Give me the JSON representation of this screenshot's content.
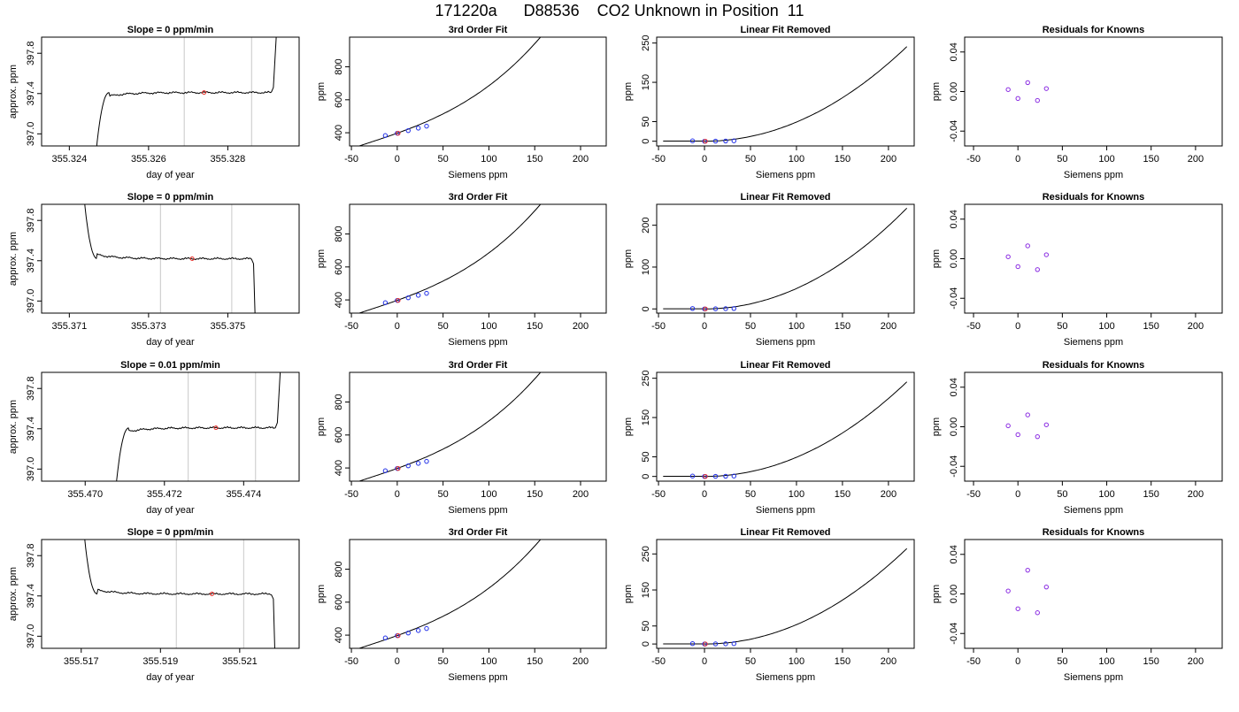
{
  "figure": {
    "title": "171220a      D88536    CO2 Unknown in Position  11"
  },
  "axis_labels": {
    "day_of_year": "day of year",
    "approx_ppm": "approx. ppm",
    "siemens_ppm": "Siemens ppm",
    "ppm": "ppm"
  },
  "panel_titles": {
    "fit3": "3rd Order Fit",
    "linear_removed": "Linear Fit Removed",
    "residuals": "Residuals for Knowns"
  },
  "colors": {
    "trace": "#000000",
    "marker_red": "#e8302a",
    "marker_blue": "#1f2ee8",
    "marker_purple": "#8a2be2",
    "window_line": "#c8c8c8"
  },
  "chart_data": [
    {
      "type": "line",
      "row": 1,
      "column": "time series",
      "title": "Slope =  0  ppm/min",
      "xlabel": "day of year",
      "ylabel": "approx. ppm",
      "xlim": [
        355.3233,
        355.3298
      ],
      "ylim": [
        396.88,
        397.96
      ],
      "xticks": [
        355.324,
        355.326,
        355.328
      ],
      "xtick_labels": [
        "355.324",
        "355.326",
        "355.328"
      ],
      "yticks": [
        397.0,
        397.4,
        397.8
      ],
      "ytick_labels": [
        "397.0",
        "397.4",
        "397.8"
      ],
      "window_lines": [
        355.3269,
        355.3286
      ],
      "marker": {
        "x": 355.3274,
        "y": 397.41
      },
      "trace": {
        "level": 397.41,
        "start_x": 355.3246,
        "rise_x": 355.325,
        "end_x": 355.3291,
        "edge": "rise-left-jump-right"
      }
    },
    {
      "type": "line",
      "row": 2,
      "column": "time series",
      "title": "Slope =  0  ppm/min",
      "xlabel": "day of year",
      "ylabel": "approx. ppm",
      "xlim": [
        355.3703,
        355.3768
      ],
      "ylim": [
        396.88,
        397.96
      ],
      "xticks": [
        355.371,
        355.373,
        355.375
      ],
      "xtick_labels": [
        "355.371",
        "355.373",
        "355.375"
      ],
      "yticks": [
        397.0,
        397.4,
        397.8
      ],
      "ytick_labels": [
        "397.0",
        "397.4",
        "397.8"
      ],
      "window_lines": [
        355.3733,
        355.3751
      ],
      "marker": {
        "x": 355.3741,
        "y": 397.42
      },
      "trace": {
        "level": 397.42,
        "start_x": 355.3713,
        "rise_x": 355.3717,
        "end_x": 355.3756,
        "edge": "decay-left-drop-right"
      }
    },
    {
      "type": "line",
      "row": 3,
      "column": "time series",
      "title": "Slope =  0.01  ppm/min",
      "xlabel": "day of year",
      "ylabel": "approx. ppm",
      "xlim": [
        355.4689,
        355.4754
      ],
      "ylim": [
        396.88,
        397.96
      ],
      "xticks": [
        355.47,
        355.472,
        355.474
      ],
      "xtick_labels": [
        "355.470",
        "355.472",
        "355.474"
      ],
      "yticks": [
        397.0,
        397.4,
        397.8
      ],
      "ytick_labels": [
        "397.0",
        "397.4",
        "397.8"
      ],
      "window_lines": [
        355.4726,
        355.4743
      ],
      "marker": {
        "x": 355.4733,
        "y": 397.41
      },
      "trace": {
        "level": 397.41,
        "start_x": 355.4707,
        "rise_x": 355.4711,
        "end_x": 355.4748,
        "edge": "rise-left-jump-right"
      }
    },
    {
      "type": "line",
      "row": 4,
      "column": "time series",
      "title": "Slope =  0  ppm/min",
      "xlabel": "day of year",
      "ylabel": "approx. ppm",
      "xlim": [
        355.516,
        355.5225
      ],
      "ylim": [
        396.88,
        397.96
      ],
      "xticks": [
        355.517,
        355.519,
        355.521
      ],
      "xtick_labels": [
        "355.517",
        "355.519",
        "355.521"
      ],
      "yticks": [
        397.0,
        397.4,
        397.8
      ],
      "ytick_labels": [
        "397.0",
        "397.4",
        "397.8"
      ],
      "window_lines": [
        355.5194,
        355.5211
      ],
      "marker": {
        "x": 355.5203,
        "y": 397.42
      },
      "trace": {
        "level": 397.42,
        "start_x": 355.517,
        "rise_x": 355.5174,
        "end_x": 355.5218,
        "edge": "decay-left-drop-right"
      }
    },
    {
      "type": "line",
      "row": 1,
      "column": "fit",
      "title": "3rd Order Fit",
      "xlabel": "Siemens ppm",
      "ylabel": "ppm",
      "xlim": [
        -52,
        228
      ],
      "ylim": [
        320,
        980
      ],
      "xticks": [
        -50,
        0,
        50,
        100,
        150,
        200
      ],
      "yticks": [
        400,
        600,
        800
      ],
      "curve": {
        "x0": -45,
        "x1": 220,
        "a": 397.4,
        "b": 2.0,
        "c": 0.0048,
        "d": 4e-05
      },
      "points_blue": [
        [
          -13,
          383
        ],
        [
          0,
          397
        ],
        [
          12,
          413
        ],
        [
          23,
          428
        ],
        [
          32,
          440
        ]
      ],
      "points_red": [
        [
          0,
          397
        ]
      ]
    },
    {
      "type": "line",
      "row": 2,
      "column": "fit",
      "title": "3rd Order Fit",
      "xlabel": "Siemens ppm",
      "ylabel": "ppm",
      "xlim": [
        -52,
        228
      ],
      "ylim": [
        320,
        980
      ],
      "xticks": [
        -50,
        0,
        50,
        100,
        150,
        200
      ],
      "yticks": [
        400,
        600,
        800
      ],
      "curve": {
        "x0": -45,
        "x1": 220,
        "a": 397.4,
        "b": 2.0,
        "c": 0.0048,
        "d": 4e-05
      },
      "points_blue": [
        [
          -13,
          383
        ],
        [
          0,
          397
        ],
        [
          12,
          413
        ],
        [
          23,
          428
        ],
        [
          32,
          440
        ]
      ],
      "points_red": [
        [
          0,
          397
        ]
      ]
    },
    {
      "type": "line",
      "row": 3,
      "column": "fit",
      "title": "3rd Order Fit",
      "xlabel": "Siemens ppm",
      "ylabel": "ppm",
      "xlim": [
        -52,
        228
      ],
      "ylim": [
        320,
        980
      ],
      "xticks": [
        -50,
        0,
        50,
        100,
        150,
        200
      ],
      "yticks": [
        400,
        600,
        800
      ],
      "curve": {
        "x0": -45,
        "x1": 220,
        "a": 397.4,
        "b": 2.0,
        "c": 0.0048,
        "d": 4e-05
      },
      "points_blue": [
        [
          -13,
          383
        ],
        [
          0,
          397
        ],
        [
          12,
          413
        ],
        [
          23,
          428
        ],
        [
          32,
          440
        ]
      ],
      "points_red": [
        [
          0,
          397
        ]
      ]
    },
    {
      "type": "line",
      "row": 4,
      "column": "fit",
      "title": "3rd Order Fit",
      "xlabel": "Siemens ppm",
      "ylabel": "ppm",
      "xlim": [
        -52,
        228
      ],
      "ylim": [
        320,
        980
      ],
      "xticks": [
        -50,
        0,
        50,
        100,
        150,
        200
      ],
      "yticks": [
        400,
        600,
        800
      ],
      "curve": {
        "x0": -45,
        "x1": 220,
        "a": 397.4,
        "b": 2.0,
        "c": 0.0048,
        "d": 4e-05
      },
      "points_blue": [
        [
          -13,
          383
        ],
        [
          0,
          397
        ],
        [
          12,
          413
        ],
        [
          23,
          428
        ],
        [
          32,
          440
        ]
      ],
      "points_red": [
        [
          0,
          397
        ]
      ]
    },
    {
      "type": "line",
      "row": 1,
      "column": "linear removed",
      "title": "Linear Fit Removed",
      "xlabel": "Siemens ppm",
      "ylabel": "ppm",
      "xlim": [
        -52,
        228
      ],
      "ylim": [
        -12,
        265
      ],
      "xticks": [
        -50,
        0,
        50,
        100,
        150,
        200
      ],
      "yticks": [
        0,
        50,
        150,
        250
      ],
      "curve": {
        "x0": -45,
        "x1": 220,
        "c": 0.0048,
        "d": 2.5e-06,
        "offset": 1
      },
      "points_blue": [
        [
          -13,
          1
        ],
        [
          0,
          0
        ],
        [
          12,
          0.3
        ],
        [
          23,
          0.6
        ],
        [
          32,
          1
        ]
      ],
      "points_red": [
        [
          0,
          0
        ]
      ]
    },
    {
      "type": "line",
      "row": 2,
      "column": "linear removed",
      "title": "Linear Fit Removed",
      "xlabel": "Siemens ppm",
      "ylabel": "ppm",
      "xlim": [
        -52,
        228
      ],
      "ylim": [
        -10,
        250
      ],
      "xticks": [
        -50,
        0,
        50,
        100,
        150,
        200
      ],
      "yticks": [
        0,
        100,
        200
      ],
      "curve": {
        "x0": -45,
        "x1": 220,
        "c": 0.0048,
        "d": 2.5e-06,
        "offset": 1
      },
      "points_blue": [
        [
          -13,
          1
        ],
        [
          0,
          0
        ],
        [
          12,
          0.3
        ],
        [
          23,
          0.6
        ],
        [
          32,
          1
        ]
      ],
      "points_red": [
        [
          0,
          0
        ]
      ]
    },
    {
      "type": "line",
      "row": 3,
      "column": "linear removed",
      "title": "Linear Fit Removed",
      "xlabel": "Siemens ppm",
      "ylabel": "ppm",
      "xlim": [
        -52,
        228
      ],
      "ylim": [
        -12,
        265
      ],
      "xticks": [
        -50,
        0,
        50,
        100,
        150,
        200
      ],
      "yticks": [
        0,
        50,
        150,
        250
      ],
      "curve": {
        "x0": -45,
        "x1": 220,
        "c": 0.0048,
        "d": 2.5e-06,
        "offset": 1
      },
      "points_blue": [
        [
          -13,
          1
        ],
        [
          0,
          0
        ],
        [
          12,
          0.3
        ],
        [
          23,
          0.6
        ],
        [
          32,
          1
        ]
      ],
      "points_red": [
        [
          0,
          0
        ]
      ]
    },
    {
      "type": "line",
      "row": 4,
      "column": "linear removed",
      "title": "Linear Fit Removed",
      "xlabel": "Siemens ppm",
      "ylabel": "ppm",
      "xlim": [
        -52,
        228
      ],
      "ylim": [
        -12,
        290
      ],
      "xticks": [
        -50,
        0,
        50,
        100,
        150,
        200
      ],
      "yticks": [
        0,
        50,
        150,
        250
      ],
      "curve": {
        "x0": -45,
        "x1": 220,
        "c": 0.0053,
        "d": 2.5e-06,
        "offset": 1
      },
      "points_blue": [
        [
          -13,
          1
        ],
        [
          0,
          0
        ],
        [
          12,
          0.3
        ],
        [
          23,
          0.6
        ],
        [
          32,
          1
        ]
      ],
      "points_red": [
        [
          0,
          0
        ]
      ]
    },
    {
      "type": "scatter",
      "row": 1,
      "column": "residuals",
      "title": "Residuals for Knowns",
      "xlabel": "Siemens ppm",
      "ylabel": "ppm",
      "xlim": [
        -60,
        230
      ],
      "ylim": [
        -0.055,
        0.055
      ],
      "xticks": [
        -50,
        0,
        50,
        100,
        150,
        200
      ],
      "yticks": [
        -0.04,
        0.0,
        0.04
      ],
      "ytick_labels": [
        "-0.04",
        "0.00",
        "0.04"
      ],
      "points": [
        [
          -11,
          0.002
        ],
        [
          0,
          -0.007
        ],
        [
          11,
          0.009
        ],
        [
          22,
          -0.009
        ],
        [
          32,
          0.003
        ]
      ]
    },
    {
      "type": "scatter",
      "row": 2,
      "column": "residuals",
      "title": "Residuals for Knowns",
      "xlabel": "Siemens ppm",
      "ylabel": "ppm",
      "xlim": [
        -60,
        230
      ],
      "ylim": [
        -0.055,
        0.055
      ],
      "xticks": [
        -50,
        0,
        50,
        100,
        150,
        200
      ],
      "yticks": [
        -0.04,
        0.0,
        0.04
      ],
      "ytick_labels": [
        "-0.04",
        "0.00",
        "0.04"
      ],
      "points": [
        [
          -11,
          0.002
        ],
        [
          0,
          -0.008
        ],
        [
          11,
          0.013
        ],
        [
          22,
          -0.011
        ],
        [
          32,
          0.004
        ]
      ]
    },
    {
      "type": "scatter",
      "row": 3,
      "column": "residuals",
      "title": "Residuals for Knowns",
      "xlabel": "Siemens ppm",
      "ylabel": "ppm",
      "xlim": [
        -60,
        230
      ],
      "ylim": [
        -0.055,
        0.055
      ],
      "xticks": [
        -50,
        0,
        50,
        100,
        150,
        200
      ],
      "yticks": [
        -0.04,
        0.0,
        0.04
      ],
      "ytick_labels": [
        "-0.04",
        "0.00",
        "0.04"
      ],
      "points": [
        [
          -11,
          0.001
        ],
        [
          0,
          -0.008
        ],
        [
          11,
          0.012
        ],
        [
          22,
          -0.01
        ],
        [
          32,
          0.002
        ]
      ]
    },
    {
      "type": "scatter",
      "row": 4,
      "column": "residuals",
      "title": "Residuals for Knowns",
      "xlabel": "Siemens ppm",
      "ylabel": "ppm",
      "xlim": [
        -60,
        230
      ],
      "ylim": [
        -0.055,
        0.055
      ],
      "xticks": [
        -50,
        0,
        50,
        100,
        150,
        200
      ],
      "yticks": [
        -0.04,
        0.0,
        0.04
      ],
      "ytick_labels": [
        "-0.04",
        "0.00",
        "0.04"
      ],
      "points": [
        [
          -11,
          0.003
        ],
        [
          0,
          -0.015
        ],
        [
          11,
          0.024
        ],
        [
          22,
          -0.019
        ],
        [
          32,
          0.007
        ]
      ]
    }
  ]
}
